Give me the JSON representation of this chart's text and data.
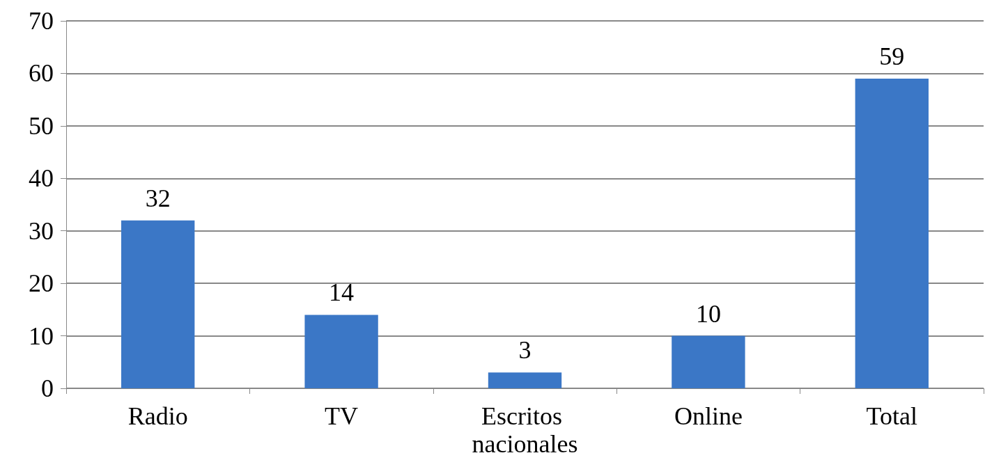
{
  "chart_data": {
    "type": "bar",
    "categories": [
      "Radio",
      "TV",
      "Escritos nacionales",
      "Online",
      "Total"
    ],
    "values": [
      32,
      14,
      3,
      10,
      59
    ],
    "color": "#3b77c6",
    "ylim": [
      0,
      70
    ],
    "yticks": [
      0,
      10,
      20,
      30,
      40,
      50,
      60,
      70
    ],
    "grid": "y",
    "data_labels": true
  }
}
